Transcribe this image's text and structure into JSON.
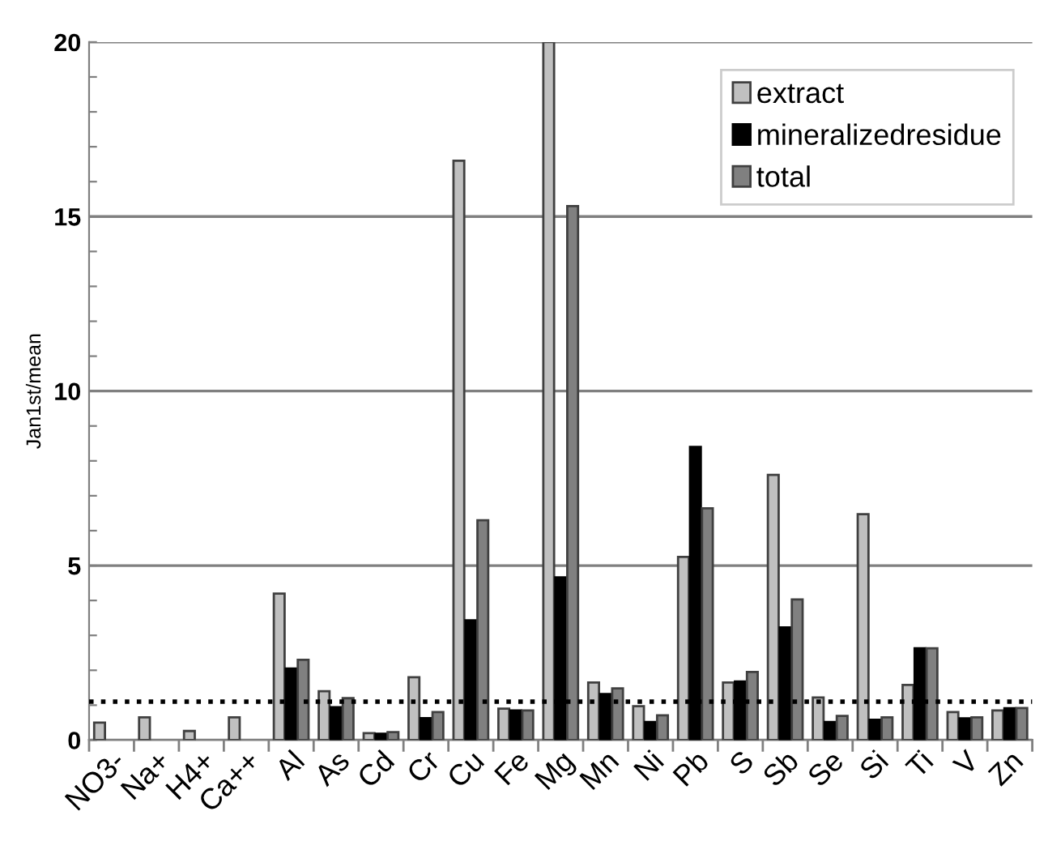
{
  "chart_data": {
    "type": "bar",
    "ylabel": "Jan1st/mean",
    "categories": [
      "NO3-",
      "Na+",
      "H4+",
      "Ca++",
      "Al",
      "As",
      "Cd",
      "Cr",
      "Cu",
      "Fe",
      "Mg",
      "Mn",
      "Ni",
      "Pb",
      "S",
      "Sb",
      "Se",
      "Si",
      "Ti",
      "V",
      "Zn"
    ],
    "series": [
      {
        "name": "extract",
        "color": "#c0c0c0",
        "values": [
          0.5,
          0.65,
          0.26,
          0.65,
          4.2,
          1.4,
          0.2,
          1.8,
          16.6,
          0.9,
          20,
          1.65,
          0.97,
          5.25,
          1.65,
          7.6,
          1.22,
          6.47,
          1.58,
          0.8,
          0.85
        ]
      },
      {
        "name": "mineralizedresidue",
        "color": "#000000",
        "values": [
          null,
          null,
          null,
          null,
          2.05,
          0.94,
          0.18,
          0.63,
          3.43,
          0.85,
          4.66,
          1.32,
          0.52,
          8.4,
          1.68,
          3.23,
          0.52,
          0.58,
          2.63,
          0.62,
          0.91
        ]
      },
      {
        "name": "total",
        "color": "#808080",
        "values": [
          null,
          null,
          null,
          null,
          2.3,
          1.2,
          0.23,
          0.8,
          6.3,
          0.85,
          15.3,
          1.48,
          0.71,
          6.64,
          1.95,
          4.03,
          0.69,
          0.65,
          2.63,
          0.65,
          0.92
        ]
      }
    ],
    "ylim": [
      0,
      20
    ],
    "yticks": [
      0,
      {
        "value": 1,
        "label": null
      },
      {
        "value": 2,
        "label": null
      },
      {
        "value": 3,
        "label": null
      },
      {
        "value": 4,
        "label": null
      },
      5,
      {
        "value": 6,
        "label": null
      },
      {
        "value": 7,
        "label": null
      },
      {
        "value": 8,
        "label": null
      },
      {
        "value": 9,
        "label": null
      },
      10,
      {
        "value": 11,
        "label": null
      },
      {
        "value": 12,
        "label": null
      },
      {
        "value": 13,
        "label": null
      },
      {
        "value": 14,
        "label": null
      },
      15,
      {
        "value": 16,
        "label": null
      },
      {
        "value": 17,
        "label": null
      },
      {
        "value": 18,
        "label": null
      },
      {
        "value": 19,
        "label": null
      },
      20
    ],
    "ref_lines": [
      {
        "axis": "y",
        "value": 1.1,
        "color": "#000000",
        "line_style": "dotted"
      }
    ],
    "grid": "y",
    "legend": "top right"
  }
}
